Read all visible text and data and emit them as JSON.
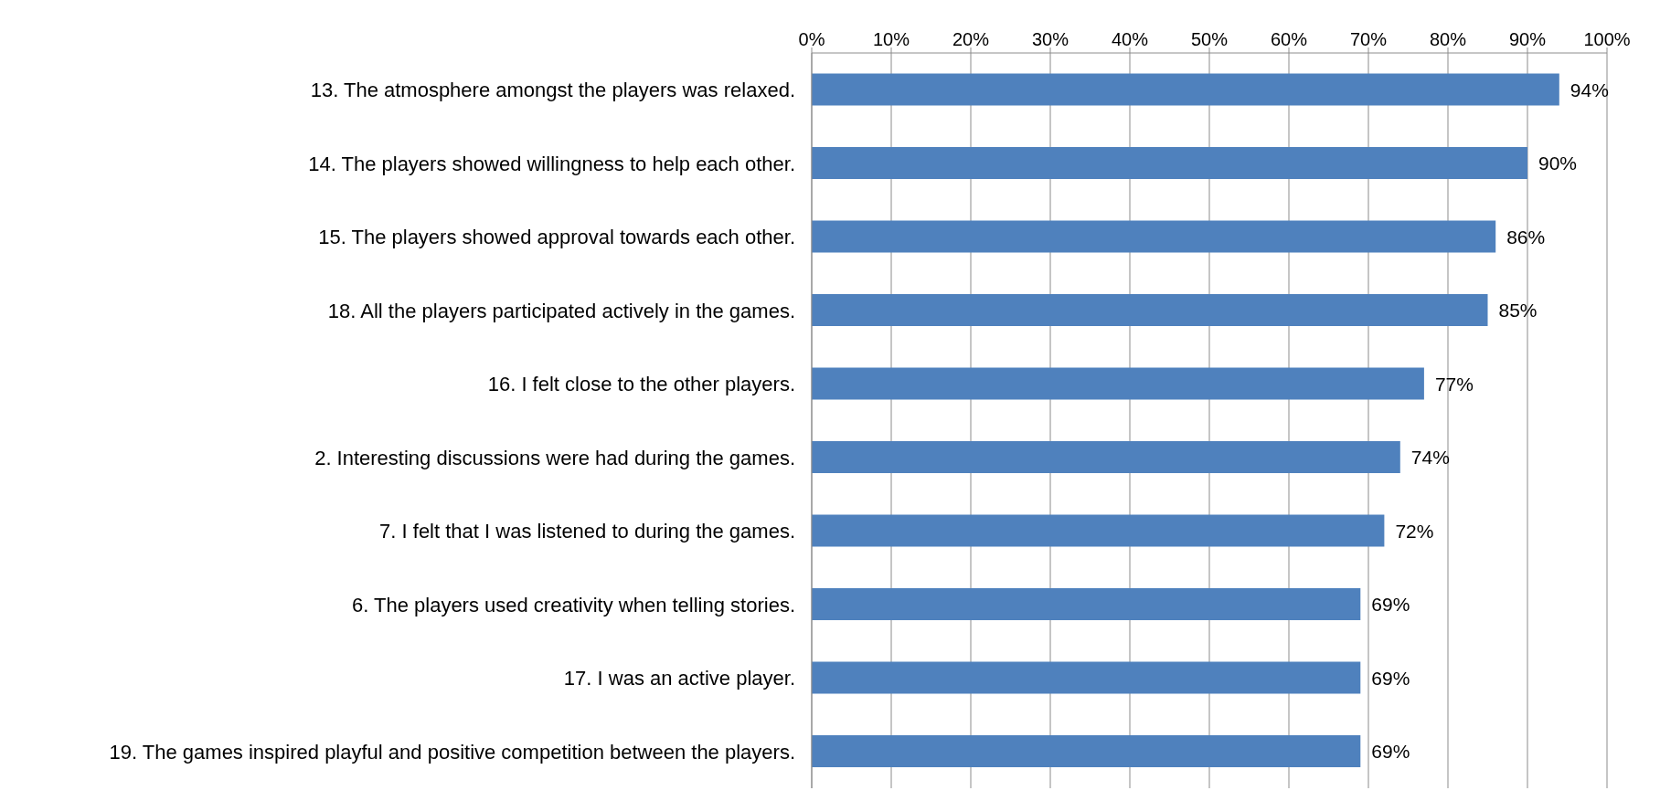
{
  "chart_data": {
    "type": "bar",
    "orientation": "horizontal",
    "categories": [
      "13. The atmosphere amongst the players was relaxed.",
      "14. The players showed willingness to help each other.",
      "15. The players showed approval towards each other.",
      "18. All the players participated actively in the games.",
      "16. I felt close to the other players.",
      "2. Interesting discussions were had during the games.",
      "7. I felt that I was listened to during the games.",
      "6. The players used creativity when telling stories.",
      "17. I was an active player.",
      "19. The games inspired playful and positive competition between the players."
    ],
    "values": [
      94,
      90,
      86,
      85,
      77,
      74,
      72,
      69,
      69,
      69
    ],
    "value_labels": [
      "94%",
      "90%",
      "86%",
      "85%",
      "77%",
      "74%",
      "72%",
      "69%",
      "69%",
      "69%"
    ],
    "color": "#4f81bd",
    "xlim": [
      0,
      100
    ],
    "xticks": [
      {
        "value": 0,
        "label": "0%"
      },
      {
        "value": 10,
        "label": "10%"
      },
      {
        "value": 20,
        "label": "20%"
      },
      {
        "value": 30,
        "label": "30%"
      },
      {
        "value": 40,
        "label": "40%"
      },
      {
        "value": 50,
        "label": "50%"
      },
      {
        "value": 60,
        "label": "60%"
      },
      {
        "value": 70,
        "label": "70%"
      },
      {
        "value": 80,
        "label": "80%"
      },
      {
        "value": 90,
        "label": "90%"
      },
      {
        "value": 100,
        "label": "100%"
      }
    ],
    "grid": "x"
  }
}
